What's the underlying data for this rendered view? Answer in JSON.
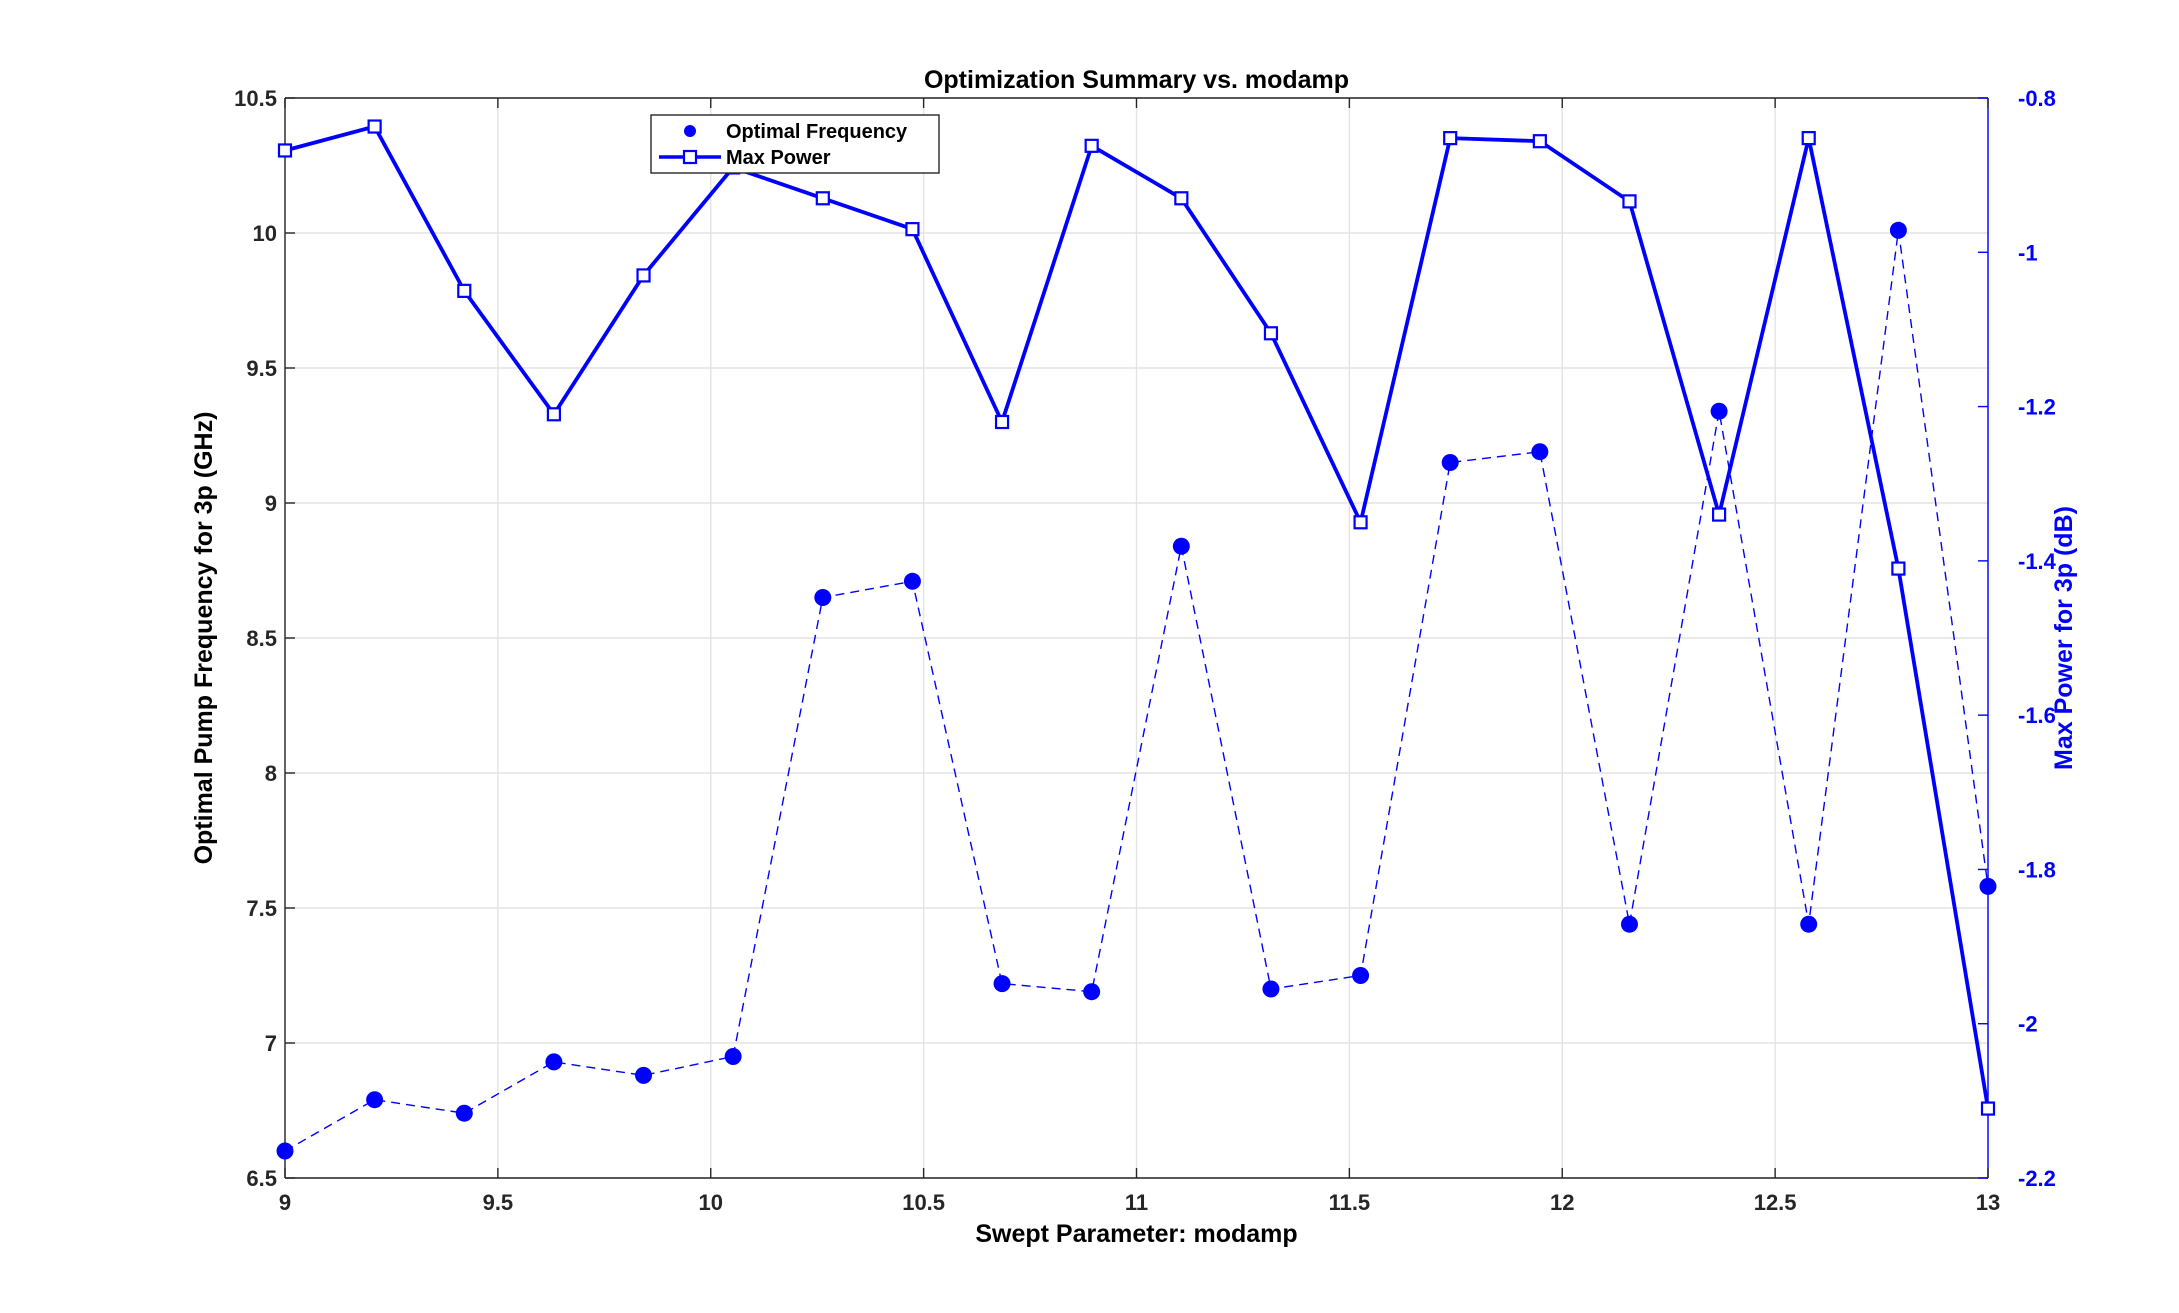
{
  "chart_data": {
    "type": "line",
    "title": "Optimization Summary vs. modamp",
    "xlabel": "Swept Parameter: modamp",
    "ylabel_left": "Optimal Pump Frequency for 3p (GHz)",
    "ylabel_right": "Max Power for 3p (dB)",
    "xlim": [
      9,
      13
    ],
    "ylim_left": [
      6.5,
      10.5
    ],
    "ylim_right": [
      -2.2,
      -0.8
    ],
    "xticks": [
      "9",
      "9.5",
      "10",
      "10.5",
      "11",
      "11.5",
      "12",
      "12.5",
      "13"
    ],
    "yticks_left": [
      "6.5",
      "7",
      "7.5",
      "8",
      "8.5",
      "9",
      "9.5",
      "10",
      "10.5"
    ],
    "yticks_right": [
      "-2.2",
      "-2",
      "-1.8",
      "-1.6",
      "-1.4",
      "-1.2",
      "-1",
      "-0.8"
    ],
    "grid": true,
    "legend_position": "top-left",
    "colors": {
      "series": "#0000ff",
      "grid": "#e3e3e3",
      "axis": "#262626"
    },
    "x": [
      9.0,
      9.2105,
      9.4211,
      9.6316,
      9.8421,
      10.0526,
      10.2632,
      10.4737,
      10.6842,
      10.8947,
      11.1053,
      11.3158,
      11.5263,
      11.7368,
      11.9474,
      12.1579,
      12.3684,
      12.5789,
      12.7895,
      13.0
    ],
    "series": [
      {
        "name": "Optimal Frequency",
        "axis": "left",
        "style": "dashed-markers",
        "values": [
          6.6,
          6.79,
          6.74,
          6.93,
          6.88,
          6.95,
          8.65,
          8.71,
          7.22,
          7.19,
          8.84,
          7.2,
          7.25,
          9.15,
          9.19,
          7.44,
          9.34,
          7.44,
          10.01,
          7.58
        ]
      },
      {
        "name": "Max Power",
        "axis": "right",
        "style": "solid-squares",
        "values": [
          -0.868,
          -0.837,
          -1.05,
          -1.21,
          -1.03,
          -0.89,
          -0.93,
          -0.97,
          -1.22,
          -0.862,
          -0.93,
          -1.105,
          -1.35,
          -0.852,
          -0.856,
          -0.934,
          -1.34,
          -0.852,
          -1.41,
          -2.11
        ]
      }
    ]
  }
}
